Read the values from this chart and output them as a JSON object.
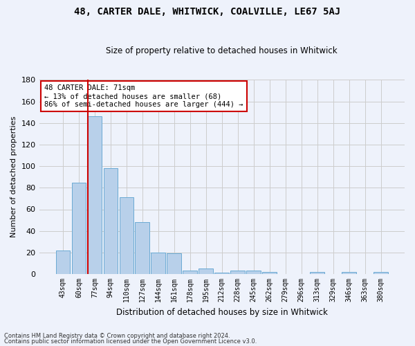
{
  "title": "48, CARTER DALE, WHITWICK, COALVILLE, LE67 5AJ",
  "subtitle": "Size of property relative to detached houses in Whitwick",
  "xlabel": "Distribution of detached houses by size in Whitwick",
  "ylabel": "Number of detached properties",
  "categories": [
    "43sqm",
    "60sqm",
    "77sqm",
    "94sqm",
    "110sqm",
    "127sqm",
    "144sqm",
    "161sqm",
    "178sqm",
    "195sqm",
    "212sqm",
    "228sqm",
    "245sqm",
    "262sqm",
    "279sqm",
    "296sqm",
    "313sqm",
    "329sqm",
    "346sqm",
    "363sqm",
    "380sqm"
  ],
  "values": [
    22,
    85,
    146,
    98,
    71,
    48,
    20,
    19,
    3,
    5,
    1,
    3,
    3,
    2,
    0,
    0,
    2,
    0,
    2,
    0,
    2
  ],
  "bar_color": "#b8d0ea",
  "bar_edge_color": "#6aaad4",
  "grid_color": "#cccccc",
  "bg_color": "#eef2fb",
  "annotation_text": "48 CARTER DALE: 71sqm\n← 13% of detached houses are smaller (68)\n86% of semi-detached houses are larger (444) →",
  "annotation_box_color": "#ffffff",
  "annotation_box_edge": "#cc0000",
  "vline_color": "#cc0000",
  "vline_bin_index": 2,
  "ylim": [
    0,
    180
  ],
  "yticks": [
    0,
    20,
    40,
    60,
    80,
    100,
    120,
    140,
    160,
    180
  ],
  "footnote1": "Contains HM Land Registry data © Crown copyright and database right 2024.",
  "footnote2": "Contains public sector information licensed under the Open Government Licence v3.0."
}
